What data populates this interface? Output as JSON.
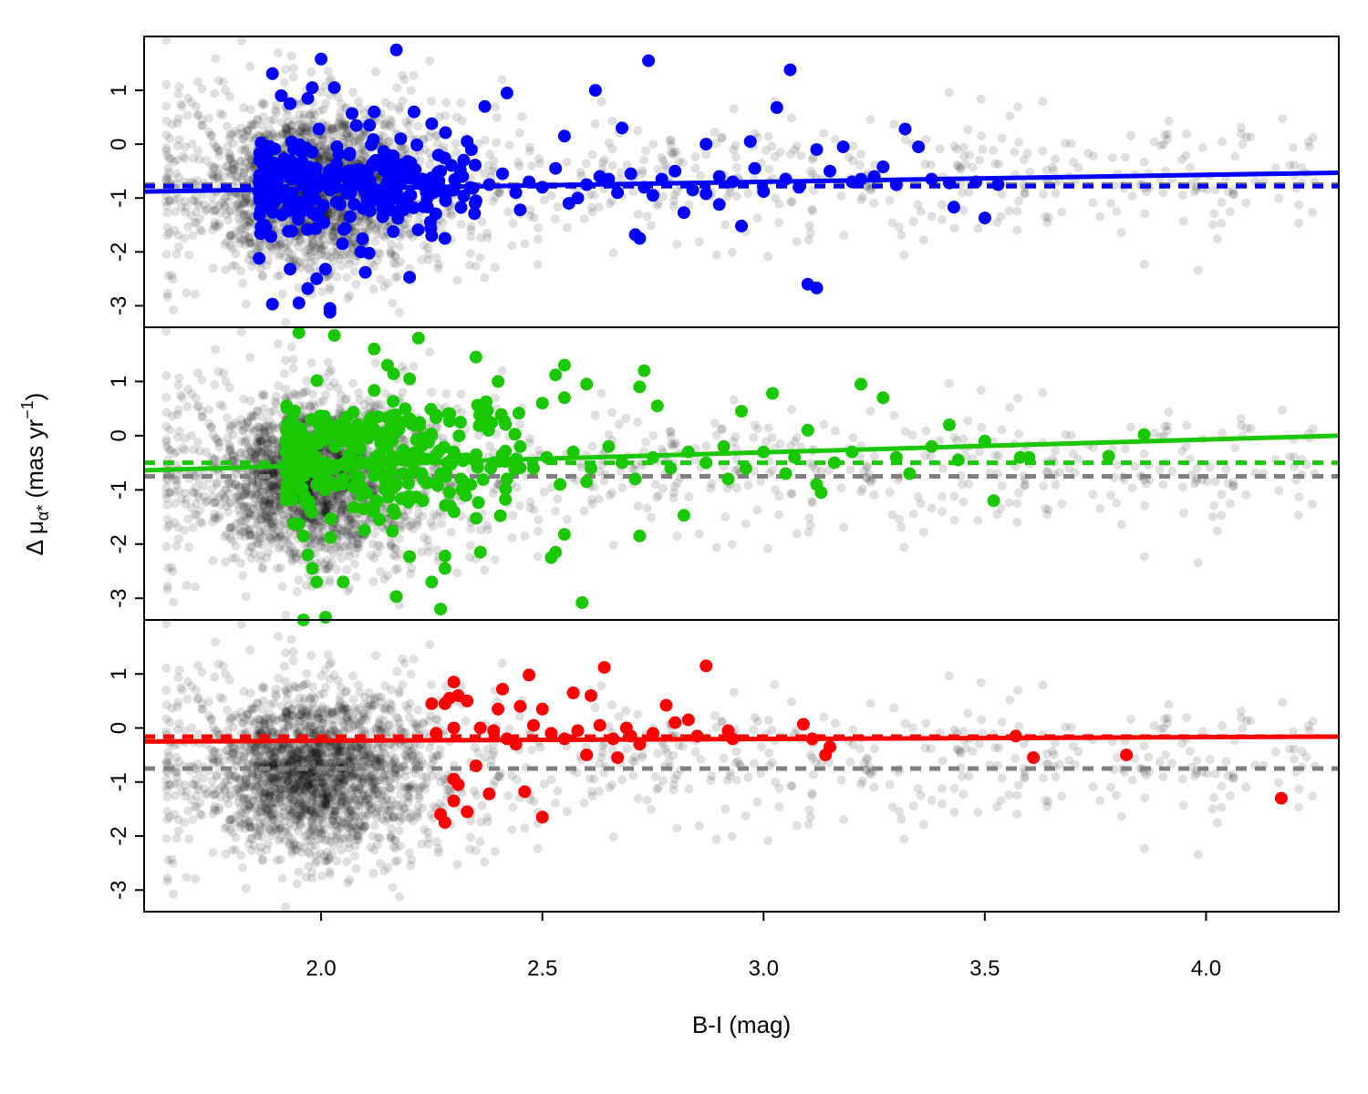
{
  "chart_data": {
    "type": "scatter",
    "layout": "three vertically stacked panels sharing the x axis",
    "xlabel": "B-I (mag)",
    "ylabel": {
      "prefix": "Δ μ",
      "subscript": "α*",
      "suffix": " (mas yr",
      "superscript": "−1",
      "close": ")"
    },
    "xlim": [
      1.6,
      4.3
    ],
    "ylim": [
      -3.4,
      2.0
    ],
    "x_ticks": [
      "2.0",
      "2.5",
      "3.0",
      "3.5",
      "4.0"
    ],
    "x_tick_values": [
      2.0,
      2.5,
      3.0,
      3.5,
      4.0
    ],
    "y_ticks": [
      "-3",
      "-2",
      "-1",
      "0",
      "1"
    ],
    "y_tick_values": [
      -3,
      -2,
      -1,
      0,
      1
    ],
    "grid": false,
    "legend": "none",
    "background_points": {
      "description": "full sample, semi-transparent grey, repeated in every panel",
      "color": "#000000",
      "opacity": 0.12,
      "count": 2600,
      "dense_core": {
        "x_center": 1.95,
        "x_sd": 0.09,
        "y_center": -0.85,
        "y_sd": 0.75
      },
      "tail": {
        "x_range": [
          1.65,
          4.25
        ],
        "y_center": -0.6,
        "y_sd": 0.6
      }
    },
    "reference_fit": {
      "color": "#808080",
      "style": "dashed",
      "y": -0.75
    },
    "series": [
      {
        "color": "#0000FF",
        "fit_line": {
          "x": [
            1.6,
            4.3
          ],
          "y": [
            -0.88,
            -0.53
          ]
        },
        "mean_line": {
          "y": -0.78
        },
        "points": [
          [
            1.89,
            1.31
          ],
          [
            1.98,
            1.05
          ],
          [
            2.0,
            1.58
          ],
          [
            2.03,
            1.05
          ],
          [
            2.17,
            1.75
          ],
          [
            2.25,
            0.38
          ],
          [
            2.37,
            0.7
          ],
          [
            2.42,
            0.95
          ],
          [
            2.62,
            1.0
          ],
          [
            2.74,
            1.55
          ],
          [
            3.06,
            1.38
          ],
          [
            3.03,
            0.68
          ],
          [
            1.91,
            0.9
          ],
          [
            1.93,
            0.75
          ],
          [
            1.97,
            0.85
          ],
          [
            2.07,
            0.57
          ],
          [
            2.12,
            0.6
          ],
          [
            2.21,
            0.6
          ],
          [
            2.18,
            0.1
          ],
          [
            2.33,
            0.05
          ],
          [
            2.55,
            0.15
          ],
          [
            2.68,
            0.3
          ],
          [
            2.87,
            0.0
          ],
          [
            2.97,
            0.05
          ],
          [
            3.12,
            -0.1
          ],
          [
            3.18,
            -0.05
          ],
          [
            3.27,
            -0.42
          ],
          [
            3.32,
            0.28
          ],
          [
            3.35,
            -0.05
          ],
          [
            3.42,
            -0.72
          ],
          [
            3.5,
            -1.37
          ],
          [
            3.43,
            -1.17
          ],
          [
            3.22,
            -0.65
          ],
          [
            3.0,
            -0.88
          ],
          [
            2.9,
            -1.12
          ],
          [
            2.75,
            -0.95
          ],
          [
            2.71,
            -1.68
          ],
          [
            2.72,
            -1.75
          ],
          [
            2.82,
            -1.27
          ],
          [
            2.87,
            -0.92
          ],
          [
            2.95,
            -1.52
          ],
          [
            3.1,
            -2.6
          ],
          [
            3.12,
            -2.67
          ],
          [
            2.2,
            -2.47
          ],
          [
            2.1,
            -2.38
          ],
          [
            2.01,
            -2.32
          ],
          [
            1.99,
            -2.5
          ],
          [
            1.97,
            -2.68
          ],
          [
            1.95,
            -2.95
          ],
          [
            1.89,
            -2.97
          ],
          [
            2.02,
            -3.05
          ],
          [
            2.02,
            -3.12
          ],
          [
            1.86,
            -2.12
          ],
          [
            1.93,
            -2.32
          ],
          [
            2.09,
            -2.0
          ],
          [
            2.25,
            -1.7
          ],
          [
            2.28,
            -1.75
          ],
          [
            2.45,
            -1.22
          ],
          [
            2.58,
            -1.0
          ],
          [
            2.65,
            -0.65
          ],
          [
            1.86,
            -0.9
          ],
          [
            1.88,
            -0.6
          ],
          [
            1.9,
            -0.8
          ],
          [
            1.92,
            -1.0
          ],
          [
            1.94,
            -0.55
          ],
          [
            1.96,
            -0.7
          ],
          [
            1.98,
            -0.95
          ],
          [
            2.0,
            -0.65
          ],
          [
            2.02,
            -0.85
          ],
          [
            2.04,
            -1.1
          ],
          [
            2.06,
            -0.5
          ],
          [
            2.08,
            -0.75
          ],
          [
            2.1,
            -0.9
          ],
          [
            2.12,
            -0.4
          ],
          [
            2.14,
            -1.2
          ],
          [
            2.16,
            -0.8
          ],
          [
            2.18,
            -0.6
          ],
          [
            2.2,
            -0.95
          ],
          [
            2.22,
            -0.7
          ],
          [
            2.24,
            -1.0
          ],
          [
            2.27,
            -0.5
          ],
          [
            2.3,
            -0.85
          ],
          [
            2.32,
            -0.6
          ],
          [
            2.35,
            -1.05
          ],
          [
            2.38,
            -0.75
          ],
          [
            2.41,
            -0.55
          ],
          [
            2.44,
            -0.9
          ],
          [
            2.47,
            -0.7
          ],
          [
            2.5,
            -0.8
          ],
          [
            2.53,
            -0.45
          ],
          [
            2.56,
            -1.1
          ],
          [
            2.6,
            -0.75
          ],
          [
            2.63,
            -0.6
          ],
          [
            2.67,
            -0.9
          ],
          [
            2.7,
            -0.55
          ],
          [
            2.73,
            -0.8
          ],
          [
            2.77,
            -0.65
          ],
          [
            2.8,
            -0.5
          ],
          [
            2.84,
            -0.85
          ],
          [
            2.9,
            -0.6
          ],
          [
            2.93,
            -0.7
          ],
          [
            2.98,
            -0.45
          ],
          [
            3.05,
            -0.65
          ],
          [
            3.08,
            -0.8
          ],
          [
            3.15,
            -0.5
          ],
          [
            3.2,
            -0.7
          ],
          [
            3.25,
            -0.6
          ],
          [
            3.3,
            -0.75
          ],
          [
            3.38,
            -0.65
          ],
          [
            3.48,
            -0.7
          ],
          [
            3.53,
            -0.75
          ]
        ],
        "dense_cloud": {
          "count": 260,
          "x_range": [
            1.86,
            2.35
          ],
          "y_center": -0.8,
          "y_sd": 0.45
        }
      },
      {
        "color": "#19C800",
        "fit_line": {
          "x": [
            1.6,
            4.3
          ],
          "y": [
            -0.64,
            0.0
          ]
        },
        "mean_line": {
          "y": -0.5
        },
        "points": [
          [
            1.95,
            1.9
          ],
          [
            2.03,
            1.85
          ],
          [
            2.22,
            1.8
          ],
          [
            2.12,
            1.6
          ],
          [
            2.15,
            1.3
          ],
          [
            2.35,
            1.45
          ],
          [
            2.2,
            1.05
          ],
          [
            2.4,
            1.0
          ],
          [
            2.55,
            1.3
          ],
          [
            2.53,
            1.12
          ],
          [
            2.6,
            0.95
          ],
          [
            2.73,
            1.2
          ],
          [
            2.72,
            0.9
          ],
          [
            2.55,
            0.7
          ],
          [
            2.5,
            0.6
          ],
          [
            2.76,
            0.55
          ],
          [
            2.95,
            0.45
          ],
          [
            3.02,
            0.78
          ],
          [
            3.22,
            0.95
          ],
          [
            3.27,
            0.7
          ],
          [
            3.42,
            0.2
          ],
          [
            3.5,
            -0.1
          ],
          [
            3.58,
            -0.4
          ],
          [
            3.78,
            -0.38
          ],
          [
            3.86,
            0.02
          ],
          [
            3.52,
            -1.2
          ],
          [
            3.33,
            -0.7
          ],
          [
            3.12,
            -0.9
          ],
          [
            3.13,
            -1.05
          ],
          [
            3.05,
            -0.7
          ],
          [
            2.92,
            -0.8
          ],
          [
            2.82,
            -1.47
          ],
          [
            2.72,
            -1.85
          ],
          [
            2.6,
            -0.85
          ],
          [
            2.55,
            -1.82
          ],
          [
            2.53,
            -2.15
          ],
          [
            2.52,
            -2.25
          ],
          [
            2.59,
            -3.08
          ],
          [
            2.36,
            -2.15
          ],
          [
            2.28,
            -2.22
          ],
          [
            2.28,
            -2.45
          ],
          [
            2.27,
            -3.2
          ],
          [
            2.25,
            -2.7
          ],
          [
            2.2,
            -2.23
          ],
          [
            2.17,
            -2.97
          ],
          [
            1.96,
            -1.85
          ],
          [
            1.97,
            -2.2
          ],
          [
            1.98,
            -2.45
          ],
          [
            1.99,
            -2.7
          ],
          [
            2.01,
            -3.35
          ],
          [
            1.96,
            -3.4
          ],
          [
            2.05,
            -2.7
          ],
          [
            1.92,
            -0.3
          ],
          [
            1.95,
            -0.7
          ],
          [
            1.97,
            -0.2
          ],
          [
            1.99,
            -0.9
          ],
          [
            2.01,
            -0.5
          ],
          [
            2.03,
            0.1
          ],
          [
            2.05,
            -0.8
          ],
          [
            2.07,
            -0.3
          ],
          [
            2.09,
            -1.1
          ],
          [
            2.11,
            0.3
          ],
          [
            2.13,
            -0.6
          ],
          [
            2.15,
            -0.2
          ],
          [
            2.17,
            -0.9
          ],
          [
            2.19,
            0.5
          ],
          [
            2.21,
            -0.4
          ],
          [
            2.23,
            -1.2
          ],
          [
            2.25,
            0.0
          ],
          [
            2.27,
            -0.7
          ],
          [
            2.3,
            -0.3
          ],
          [
            2.33,
            -0.9
          ],
          [
            2.36,
            0.2
          ],
          [
            2.39,
            -0.5
          ],
          [
            2.42,
            -0.8
          ],
          [
            2.45,
            -0.2
          ],
          [
            2.48,
            -0.6
          ],
          [
            2.51,
            -0.4
          ],
          [
            2.54,
            -0.9
          ],
          [
            2.57,
            -0.3
          ],
          [
            2.61,
            -0.6
          ],
          [
            2.65,
            -0.2
          ],
          [
            2.68,
            -0.5
          ],
          [
            2.71,
            -0.8
          ],
          [
            2.75,
            -0.4
          ],
          [
            2.79,
            -0.6
          ],
          [
            2.83,
            -0.3
          ],
          [
            2.87,
            -0.5
          ],
          [
            2.91,
            -0.2
          ],
          [
            2.96,
            -0.6
          ],
          [
            3.0,
            -0.3
          ],
          [
            3.07,
            -0.4
          ],
          [
            3.1,
            0.1
          ],
          [
            3.16,
            -0.5
          ],
          [
            3.2,
            -0.3
          ],
          [
            3.3,
            -0.4
          ],
          [
            3.38,
            -0.2
          ],
          [
            3.44,
            -0.45
          ],
          [
            3.6,
            -0.4
          ]
        ],
        "dense_cloud": {
          "count": 300,
          "x_range": [
            1.92,
            2.45
          ],
          "y_center": -0.4,
          "y_sd": 0.55
        }
      },
      {
        "color": "#FF0000",
        "fit_line": {
          "x": [
            1.6,
            4.3
          ],
          "y": [
            -0.25,
            -0.16
          ]
        },
        "mean_line": {
          "y": -0.16
        },
        "points": [
          [
            2.25,
            0.45
          ],
          [
            2.29,
            0.55
          ],
          [
            2.31,
            0.6
          ],
          [
            2.3,
            0.85
          ],
          [
            2.33,
            0.5
          ],
          [
            2.28,
            0.45
          ],
          [
            2.4,
            0.35
          ],
          [
            2.45,
            0.4
          ],
          [
            2.41,
            0.72
          ],
          [
            2.47,
            0.98
          ],
          [
            2.5,
            0.35
          ],
          [
            2.57,
            0.65
          ],
          [
            2.61,
            0.6
          ],
          [
            2.64,
            1.12
          ],
          [
            2.78,
            0.42
          ],
          [
            2.87,
            1.15
          ],
          [
            2.8,
            0.1
          ],
          [
            2.83,
            0.15
          ],
          [
            2.92,
            -0.05
          ],
          [
            3.09,
            0.07
          ],
          [
            3.14,
            -0.5
          ],
          [
            3.57,
            -0.15
          ],
          [
            3.61,
            -0.55
          ],
          [
            3.82,
            -0.5
          ],
          [
            4.17,
            -1.3
          ],
          [
            2.27,
            -1.6
          ],
          [
            2.28,
            -1.75
          ],
          [
            2.3,
            -1.35
          ],
          [
            2.31,
            -1.05
          ],
          [
            2.3,
            -0.95
          ],
          [
            2.33,
            -1.55
          ],
          [
            2.35,
            -0.7
          ],
          [
            2.38,
            -1.22
          ],
          [
            2.46,
            -1.18
          ],
          [
            2.5,
            -1.65
          ],
          [
            2.6,
            -0.5
          ],
          [
            2.67,
            -0.55
          ],
          [
            2.7,
            -0.15
          ],
          [
            2.69,
            0.0
          ],
          [
            2.55,
            -0.2
          ],
          [
            2.52,
            -0.1
          ],
          [
            2.48,
            0.05
          ],
          [
            2.44,
            -0.3
          ],
          [
            2.42,
            -0.2
          ],
          [
            2.39,
            -0.05
          ],
          [
            2.36,
            0.0
          ],
          [
            2.3,
            0.0
          ],
          [
            2.26,
            -0.1
          ],
          [
            2.58,
            -0.05
          ],
          [
            2.63,
            0.05
          ],
          [
            2.66,
            -0.2
          ],
          [
            2.72,
            -0.3
          ],
          [
            2.75,
            -0.1
          ],
          [
            2.85,
            -0.15
          ],
          [
            2.93,
            -0.2
          ],
          [
            3.11,
            -0.2
          ],
          [
            3.15,
            -0.35
          ]
        ]
      }
    ]
  }
}
